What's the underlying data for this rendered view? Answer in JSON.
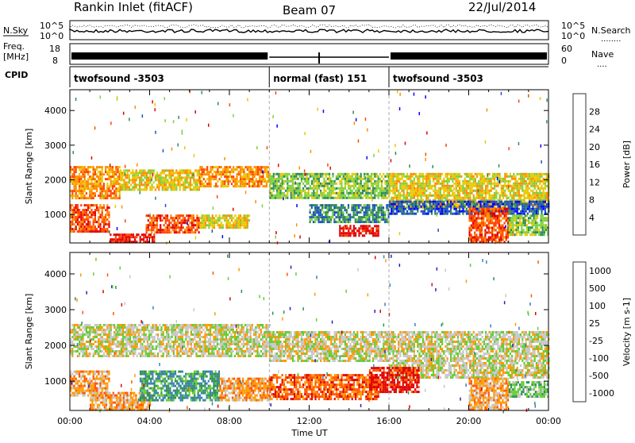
{
  "header": {
    "title": "Rankin Inlet (fitACF)",
    "beam": "Beam 07",
    "date": "22/Jul/2014"
  },
  "strips": {
    "nsky_label": "N.Sky",
    "nsearch_label": "N.Search",
    "nsearch_key": "........",
    "freq_label_1": "Freq.",
    "freq_label_2": "[MHz]",
    "nave_label": "Nave",
    "nave_key": "....",
    "cpid_label": "CPID",
    "nsky_ticks": [
      "10^5",
      "10^0"
    ],
    "nsearch_ticks": [
      "10^5",
      "10^0"
    ],
    "freq_ticks": [
      "18",
      "8"
    ],
    "nave_ticks": [
      "60",
      "0"
    ],
    "cpid_segments": [
      {
        "start_hour": 0,
        "end_hour": 10,
        "label": "twofsound -3503"
      },
      {
        "start_hour": 10,
        "end_hour": 16,
        "label": "normal (fast) 151"
      },
      {
        "start_hour": 16,
        "end_hour": 24,
        "label": "twofsound -3503"
      }
    ]
  },
  "chart_data": [
    {
      "type": "heatmap",
      "title": "",
      "xlabel": "Time UT",
      "ylabel": "Slant Range [km]",
      "xlim": [
        0,
        24
      ],
      "ylim": [
        180,
        4600
      ],
      "yticks": [
        1000,
        2000,
        3000,
        4000
      ],
      "xticks": [
        "00:00",
        "04:00",
        "08:00",
        "12:00",
        "16:00",
        "20:00",
        "00:00"
      ],
      "colorbar": {
        "label": "Power [dB]",
        "ticks": [
          "4",
          "8",
          "12",
          "16",
          "20",
          "24",
          "28"
        ],
        "colors": [
          "#0000ff",
          "#1e4ec8",
          "#2e8b57",
          "#7dd13d",
          "#e8c800",
          "#ff8c00",
          "#ff4500",
          "#e00000"
        ]
      },
      "bands": [
        {
          "hour_start": 0.0,
          "hour_end": 2.5,
          "range_min": 1500,
          "range_max": 2400,
          "level": 5
        },
        {
          "hour_start": 2.5,
          "hour_end": 6.5,
          "range_min": 1700,
          "range_max": 2300,
          "level": 4
        },
        {
          "hour_start": 6.5,
          "hour_end": 10.0,
          "range_min": 1800,
          "range_max": 2400,
          "level": 5
        },
        {
          "hour_start": 10.0,
          "hour_end": 16.0,
          "range_min": 1500,
          "range_max": 2200,
          "level": 3
        },
        {
          "hour_start": 16.0,
          "hour_end": 24.0,
          "range_min": 1200,
          "range_max": 2200,
          "level": 4
        },
        {
          "hour_start": 0.0,
          "hour_end": 2.0,
          "range_min": 500,
          "range_max": 1300,
          "level": 6
        },
        {
          "hour_start": 3.8,
          "hour_end": 6.5,
          "range_min": 500,
          "range_max": 1000,
          "level": 6
        },
        {
          "hour_start": 6.5,
          "hour_end": 9.0,
          "range_min": 600,
          "range_max": 1000,
          "level": 4
        },
        {
          "hour_start": 2.0,
          "hour_end": 4.2,
          "range_min": 180,
          "range_max": 450,
          "level": 7
        },
        {
          "hour_start": 13.5,
          "hour_end": 15.5,
          "range_min": 400,
          "range_max": 700,
          "level": 7
        },
        {
          "hour_start": 12.0,
          "hour_end": 16.0,
          "range_min": 800,
          "range_max": 1300,
          "level": 2
        },
        {
          "hour_start": 16.0,
          "hour_end": 24.0,
          "range_min": 1000,
          "range_max": 1400,
          "level": 1
        },
        {
          "hour_start": 20.0,
          "hour_end": 22.0,
          "range_min": 180,
          "range_max": 1200,
          "level": 6
        },
        {
          "hour_start": 22.0,
          "hour_end": 24.0,
          "range_min": 400,
          "range_max": 1000,
          "level": 3
        }
      ]
    },
    {
      "type": "heatmap",
      "title": "",
      "xlabel": "Time UT",
      "ylabel": "Slant Range [km]",
      "xlim": [
        0,
        24
      ],
      "ylim": [
        180,
        4600
      ],
      "yticks": [
        1000,
        2000,
        3000,
        4000
      ],
      "xticks": [
        "00:00",
        "04:00",
        "08:00",
        "12:00",
        "16:00",
        "20:00",
        "00:00"
      ],
      "colorbar": {
        "label": "Velocity [m s-1]",
        "ticks": [
          "1000",
          "500",
          "100",
          "25",
          "-25",
          "-100",
          "-500",
          "-1000"
        ],
        "colors": [
          "#2222bb",
          "#3a7fc0",
          "#2f8f5a",
          "#66cc33",
          "#c8c8c8",
          "#ff9a00",
          "#ff5500",
          "#e00000"
        ]
      },
      "bands": [
        {
          "hour_start": 0.0,
          "hour_end": 10.0,
          "range_min": 1700,
          "range_max": 2600,
          "level": 4
        },
        {
          "hour_start": 10.0,
          "hour_end": 16.0,
          "range_min": 1600,
          "range_max": 2400,
          "level": 4
        },
        {
          "hour_start": 16.0,
          "hour_end": 24.0,
          "range_min": 1100,
          "range_max": 2400,
          "level": 4
        },
        {
          "hour_start": 0.0,
          "hour_end": 2.0,
          "range_min": 600,
          "range_max": 1300,
          "level": 5
        },
        {
          "hour_start": 1.0,
          "hour_end": 4.0,
          "range_min": 180,
          "range_max": 700,
          "level": 5
        },
        {
          "hour_start": 3.5,
          "hour_end": 7.5,
          "range_min": 500,
          "range_max": 1300,
          "level": 2
        },
        {
          "hour_start": 7.5,
          "hour_end": 10.0,
          "range_min": 500,
          "range_max": 1100,
          "level": 5
        },
        {
          "hour_start": 10.0,
          "hour_end": 15.5,
          "range_min": 500,
          "range_max": 1200,
          "level": 6
        },
        {
          "hour_start": 15.0,
          "hour_end": 17.5,
          "range_min": 700,
          "range_max": 1400,
          "level": 7
        },
        {
          "hour_start": 20.0,
          "hour_end": 22.0,
          "range_min": 180,
          "range_max": 1100,
          "level": 5
        },
        {
          "hour_start": 22.0,
          "hour_end": 24.0,
          "range_min": 600,
          "range_max": 1000,
          "level": 3
        }
      ]
    }
  ]
}
